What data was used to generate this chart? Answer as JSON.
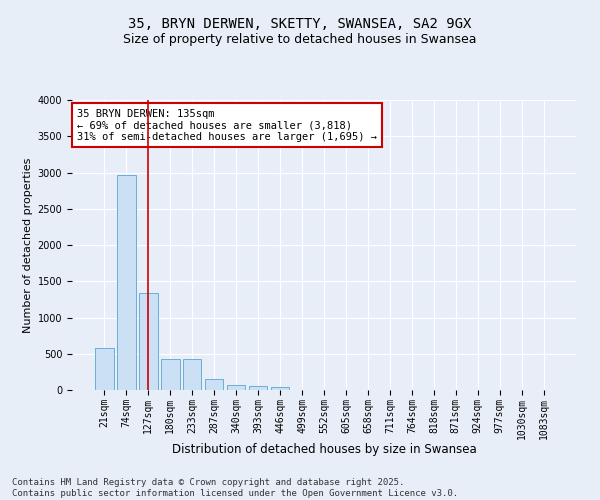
{
  "title1": "35, BRYN DERWEN, SKETTY, SWANSEA, SA2 9GX",
  "title2": "Size of property relative to detached houses in Swansea",
  "xlabel": "Distribution of detached houses by size in Swansea",
  "ylabel": "Number of detached properties",
  "categories": [
    "21sqm",
    "74sqm",
    "127sqm",
    "180sqm",
    "233sqm",
    "287sqm",
    "340sqm",
    "393sqm",
    "446sqm",
    "499sqm",
    "552sqm",
    "605sqm",
    "658sqm",
    "711sqm",
    "764sqm",
    "818sqm",
    "871sqm",
    "924sqm",
    "977sqm",
    "1030sqm",
    "1083sqm"
  ],
  "values": [
    580,
    2960,
    1340,
    430,
    430,
    155,
    75,
    55,
    40,
    0,
    0,
    0,
    0,
    0,
    0,
    0,
    0,
    0,
    0,
    0,
    0
  ],
  "bar_color": "#cce0f5",
  "bar_edge_color": "#6aaed6",
  "vline_x": 2,
  "vline_color": "#cc0000",
  "annotation_text": "35 BRYN DERWEN: 135sqm\n← 69% of detached houses are smaller (3,818)\n31% of semi-detached houses are larger (1,695) →",
  "annotation_box_color": "#ffffff",
  "annotation_box_edge": "#cc0000",
  "ylim": [
    0,
    4000
  ],
  "yticks": [
    0,
    500,
    1000,
    1500,
    2000,
    2500,
    3000,
    3500,
    4000
  ],
  "bg_color": "#e8eef8",
  "plot_bg_color": "#e8eef8",
  "grid_color": "#ffffff",
  "footer1": "Contains HM Land Registry data © Crown copyright and database right 2025.",
  "footer2": "Contains public sector information licensed under the Open Government Licence v3.0.",
  "title1_fontsize": 10,
  "title2_fontsize": 9,
  "xlabel_fontsize": 8.5,
  "ylabel_fontsize": 8,
  "tick_fontsize": 7,
  "footer_fontsize": 6.5,
  "annot_fontsize": 7.5
}
